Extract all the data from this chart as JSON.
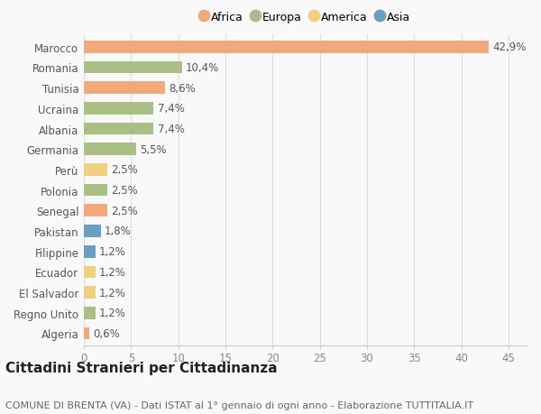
{
  "countries": [
    "Marocco",
    "Romania",
    "Tunisia",
    "Ucraina",
    "Albania",
    "Germania",
    "Perù",
    "Polonia",
    "Senegal",
    "Pakistan",
    "Filippine",
    "Ecuador",
    "El Salvador",
    "Regno Unito",
    "Algeria"
  ],
  "values": [
    42.9,
    10.4,
    8.6,
    7.4,
    7.4,
    5.5,
    2.5,
    2.5,
    2.5,
    1.8,
    1.2,
    1.2,
    1.2,
    1.2,
    0.6
  ],
  "labels": [
    "42,9%",
    "10,4%",
    "8,6%",
    "7,4%",
    "7,4%",
    "5,5%",
    "2,5%",
    "2,5%",
    "2,5%",
    "1,8%",
    "1,2%",
    "1,2%",
    "1,2%",
    "1,2%",
    "0,6%"
  ],
  "continents": [
    "Africa",
    "Europa",
    "Africa",
    "Europa",
    "Europa",
    "Europa",
    "America",
    "Europa",
    "Africa",
    "Asia",
    "Asia",
    "America",
    "America",
    "Europa",
    "Africa"
  ],
  "continent_colors": {
    "Africa": "#F0A97A",
    "Europa": "#AABF85",
    "America": "#F0D080",
    "Asia": "#6B9EC5"
  },
  "legend_order": [
    "Africa",
    "Europa",
    "America",
    "Asia"
  ],
  "xlim": [
    0,
    47
  ],
  "xticks": [
    0,
    5,
    10,
    15,
    20,
    25,
    30,
    35,
    40,
    45
  ],
  "title": "Cittadini Stranieri per Cittadinanza",
  "subtitle": "COMUNE DI BRENTA (VA) - Dati ISTAT al 1° gennaio di ogni anno - Elaborazione TUTTITALIA.IT",
  "background_color": "#F9F9F9",
  "bar_height": 0.6,
  "label_fontsize": 8.5,
  "axis_fontsize": 8.5,
  "title_fontsize": 11,
  "subtitle_fontsize": 8
}
